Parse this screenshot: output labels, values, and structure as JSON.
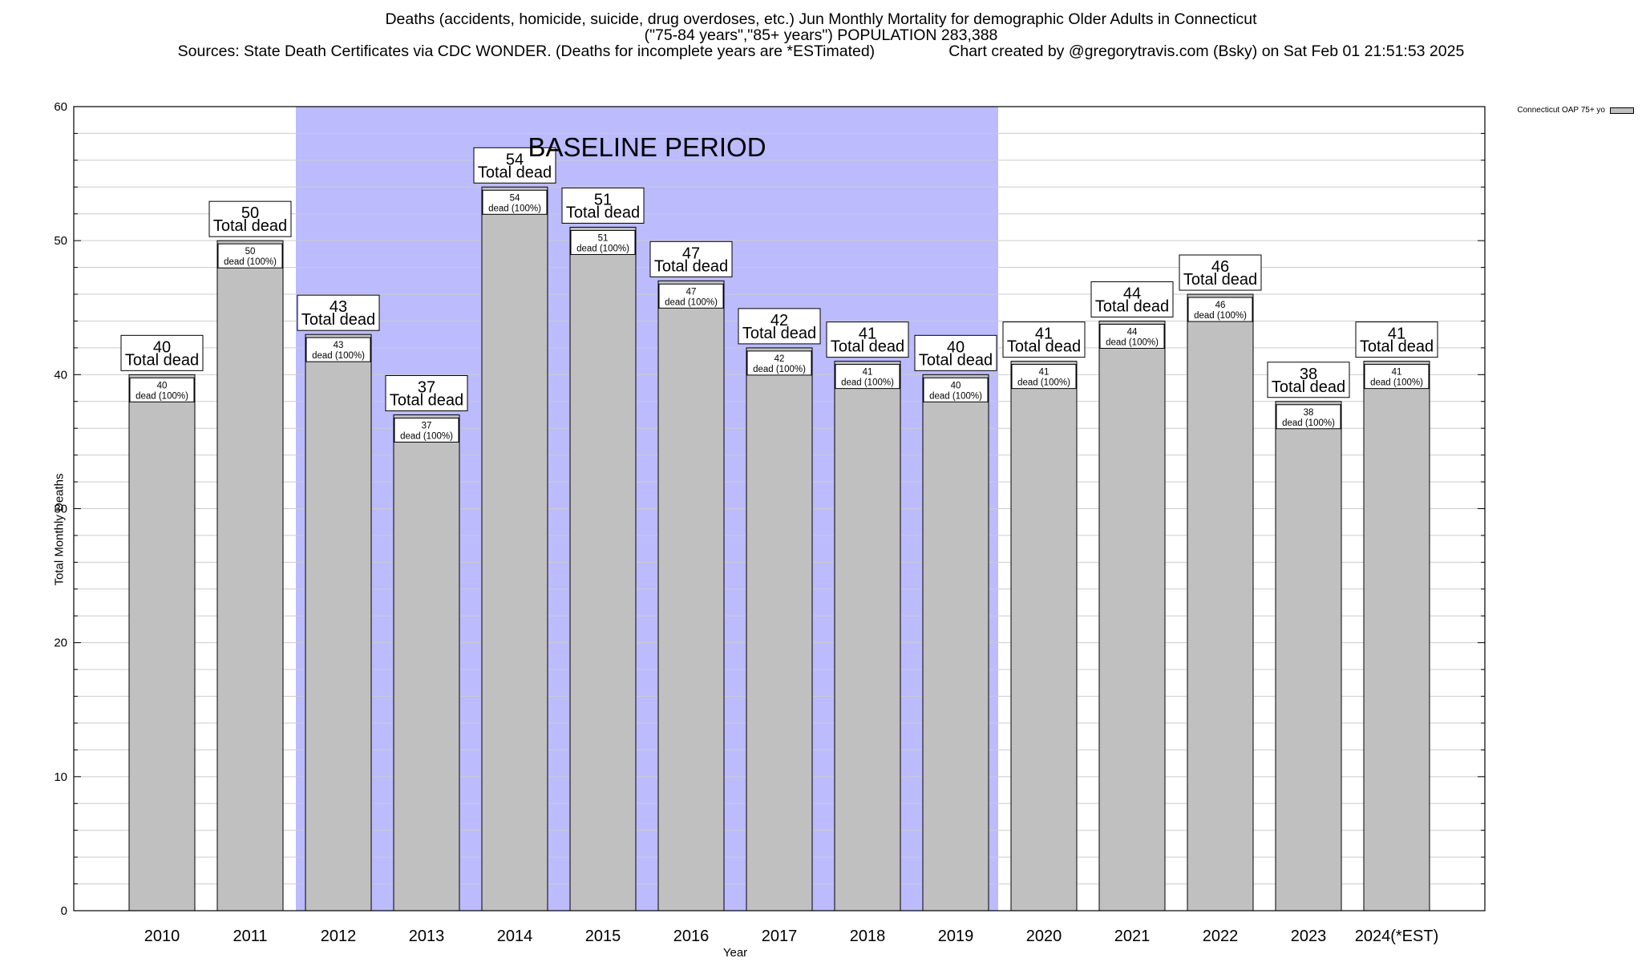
{
  "titles": {
    "line1": "Deaths (accidents, homicide, suicide, drug overdoses, etc.) Jun Monthly Mortality for demographic Older Adults in Connecticut",
    "line2": "(\"75-84 years\",\"85+ years\") POPULATION 283,388",
    "line3_left": "Sources: State Death Certificates via CDC WONDER. (Deaths for incomplete years are *ESTimated)",
    "line3_right": "Chart created by @gregorytravis.com (Bsky) on Sat Feb 01 21:51:53 2025"
  },
  "colors": {
    "bar": "#c0c0c0",
    "baseline_band": "#bbbbfe",
    "grid": "#cccccc",
    "axis": "#000000"
  },
  "chart_data": {
    "type": "bar",
    "title": "Deaths (accidents, homicide, suicide, drug overdoses, etc.) Jun Monthly Mortality for demographic Older Adults in Connecticut",
    "xlabel": "Year",
    "ylabel": "Total Monthly Deaths",
    "ylim": [
      0,
      60
    ],
    "yticks": [
      0,
      10,
      20,
      30,
      40,
      50,
      60
    ],
    "grid": true,
    "legend_position": "top-right",
    "categories": [
      "2010",
      "2011",
      "2012",
      "2013",
      "2014",
      "2015",
      "2016",
      "2017",
      "2018",
      "2019",
      "2020",
      "2021",
      "2022",
      "2023",
      "2024(*EST)"
    ],
    "series": [
      {
        "name": "Connecticut OAP 75+ yo",
        "values": [
          40,
          50,
          43,
          37,
          54,
          51,
          47,
          42,
          41,
          40,
          41,
          44,
          46,
          38,
          41
        ]
      }
    ],
    "top_label_suffix": "Total dead",
    "inner_label_suffix": "dead (100%)",
    "baseline_band": {
      "label": "BASELINE PERIOD",
      "from_category": "2012",
      "to_category": "2019"
    }
  }
}
